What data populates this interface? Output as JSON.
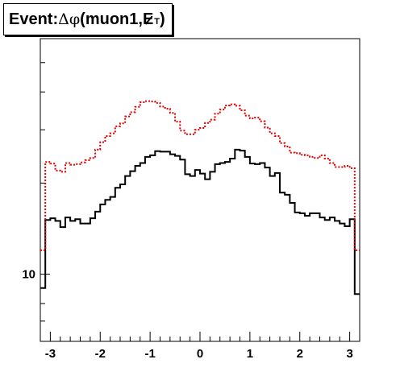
{
  "title": {
    "prefix": "Event: ",
    "delta": "Δ",
    "phi": "φ",
    "open": "(muon1,",
    "met": "E",
    "sub": "T",
    "close": ")"
  },
  "chart_data": {
    "type": "histogram",
    "title": "Event: Δφ(muon1,E̸T)",
    "xlabel": "",
    "ylabel": "",
    "xlim": [
      -3.2,
      3.2
    ],
    "ylim": [
      6,
      60
    ],
    "log_y": true,
    "grid": false,
    "x_ticks": [
      -3,
      -2,
      -1,
      0,
      1,
      2,
      3
    ],
    "y_tick_labels": [
      {
        "value": 10,
        "label": "10"
      }
    ],
    "bins": {
      "low": -3.2,
      "high": 3.2,
      "count": 64
    },
    "series": [
      {
        "color": "#000000",
        "style": "solid",
        "values": [
          9.0,
          15.1,
          15.3,
          15.0,
          14.3,
          15.4,
          15.0,
          15.2,
          14.7,
          14.7,
          15.3,
          16.1,
          17.0,
          17.6,
          18.0,
          19.3,
          19.8,
          21.1,
          21.9,
          22.8,
          23.3,
          24.4,
          24.7,
          25.5,
          25.4,
          25.4,
          24.9,
          24.6,
          23.9,
          21.4,
          21.1,
          22.1,
          21.5,
          20.6,
          21.8,
          23.1,
          23.3,
          23.5,
          24.1,
          25.8,
          25.6,
          24.4,
          23.2,
          23.1,
          23.3,
          22.5,
          21.1,
          21.6,
          18.6,
          18.3,
          17.2,
          16.0,
          15.9,
          15.6,
          15.9,
          15.9,
          15.4,
          15.1,
          15.4,
          15.0,
          14.7,
          14.4,
          15.2,
          8.6
        ]
      },
      {
        "color": "#e00000",
        "style": "dotted",
        "values": [
          12.0,
          23.5,
          23.2,
          22.0,
          21.8,
          23.3,
          23.0,
          23.1,
          23.4,
          23.8,
          24.2,
          25.8,
          27.3,
          28.6,
          29.2,
          30.8,
          31.5,
          33.2,
          34.3,
          35.7,
          37.0,
          37.3,
          37.2,
          36.8,
          35.8,
          35.2,
          34.1,
          31.9,
          29.8,
          29.0,
          29.0,
          30.0,
          30.4,
          31.6,
          32.4,
          33.9,
          35.0,
          36.1,
          36.4,
          36.0,
          34.8,
          33.4,
          32.7,
          32.9,
          32.0,
          30.5,
          29.2,
          28.6,
          27.1,
          26.4,
          25.2,
          25.1,
          24.8,
          24.7,
          24.4,
          24.2,
          24.7,
          24.1,
          23.3,
          22.6,
          22.6,
          22.8,
          22.4,
          12.0
        ]
      }
    ]
  }
}
